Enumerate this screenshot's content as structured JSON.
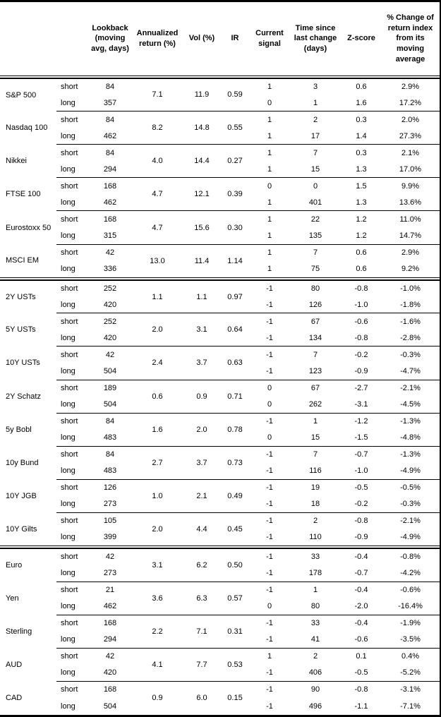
{
  "header": {
    "columns": [
      "Lookback\n(moving\navg, days)",
      "Annualized\nreturn (%)",
      "Vol (%)",
      "IR",
      "Current\nsignal",
      "Time since\nlast change\n(days)",
      "Z-score",
      "% Change of\nreturn index\nfrom its\nmoving\naverage"
    ]
  },
  "sections": [
    {
      "id": "equities",
      "groups": [
        {
          "asset": "S&P 500",
          "annualized": "7.1",
          "vol": "11.9",
          "ir": "0.59",
          "rows": [
            {
              "leg": "short",
              "lookback": "84",
              "signal": "1",
              "time_since": "3",
              "z_score": "0.6",
              "pct_change": "2.9%"
            },
            {
              "leg": "long",
              "lookback": "357",
              "signal": "0",
              "time_since": "1",
              "z_score": "1.6",
              "pct_change": "17.2%"
            }
          ]
        },
        {
          "asset": "Nasdaq 100",
          "annualized": "8.2",
          "vol": "14.8",
          "ir": "0.55",
          "rows": [
            {
              "leg": "short",
              "lookback": "84",
              "signal": "1",
              "time_since": "2",
              "z_score": "0.3",
              "pct_change": "2.0%"
            },
            {
              "leg": "long",
              "lookback": "462",
              "signal": "1",
              "time_since": "17",
              "z_score": "1.4",
              "pct_change": "27.3%"
            }
          ]
        },
        {
          "asset": "Nikkei",
          "annualized": "4.0",
          "vol": "14.4",
          "ir": "0.27",
          "rows": [
            {
              "leg": "short",
              "lookback": "84",
              "signal": "1",
              "time_since": "7",
              "z_score": "0.3",
              "pct_change": "2.1%"
            },
            {
              "leg": "long",
              "lookback": "294",
              "signal": "1",
              "time_since": "15",
              "z_score": "1.3",
              "pct_change": "17.0%"
            }
          ]
        },
        {
          "asset": "FTSE 100",
          "annualized": "4.7",
          "vol": "12.1",
          "ir": "0.39",
          "rows": [
            {
              "leg": "short",
              "lookback": "168",
              "signal": "0",
              "time_since": "0",
              "z_score": "1.5",
              "pct_change": "9.9%"
            },
            {
              "leg": "long",
              "lookback": "462",
              "signal": "1",
              "time_since": "401",
              "z_score": "1.3",
              "pct_change": "13.6%"
            }
          ]
        },
        {
          "asset": "Eurostoxx 50",
          "annualized": "4.7",
          "vol": "15.6",
          "ir": "0.30",
          "rows": [
            {
              "leg": "short",
              "lookback": "168",
              "signal": "1",
              "time_since": "22",
              "z_score": "1.2",
              "pct_change": "11.0%"
            },
            {
              "leg": "long",
              "lookback": "315",
              "signal": "1",
              "time_since": "135",
              "z_score": "1.2",
              "pct_change": "14.7%"
            }
          ]
        },
        {
          "asset": "MSCI EM",
          "annualized": "13.0",
          "vol": "11.4",
          "ir": "1.14",
          "rows": [
            {
              "leg": "short",
              "lookback": "42",
              "signal": "1",
              "time_since": "7",
              "z_score": "0.6",
              "pct_change": "2.9%"
            },
            {
              "leg": "long",
              "lookback": "336",
              "signal": "1",
              "time_since": "75",
              "z_score": "0.6",
              "pct_change": "9.2%"
            }
          ]
        }
      ]
    },
    {
      "id": "bonds",
      "groups": [
        {
          "asset": "2Y USTs",
          "annualized": "1.1",
          "vol": "1.1",
          "ir": "0.97",
          "rows": [
            {
              "leg": "short",
              "lookback": "252",
              "signal": "-1",
              "time_since": "80",
              "z_score": "-0.8",
              "pct_change": "-1.0%"
            },
            {
              "leg": "long",
              "lookback": "420",
              "signal": "-1",
              "time_since": "126",
              "z_score": "-1.0",
              "pct_change": "-1.8%"
            }
          ]
        },
        {
          "asset": "5Y USTs",
          "annualized": "2.0",
          "vol": "3.1",
          "ir": "0.64",
          "rows": [
            {
              "leg": "short",
              "lookback": "252",
              "signal": "-1",
              "time_since": "67",
              "z_score": "-0.6",
              "pct_change": "-1.6%"
            },
            {
              "leg": "long",
              "lookback": "420",
              "signal": "-1",
              "time_since": "134",
              "z_score": "-0.8",
              "pct_change": "-2.8%"
            }
          ]
        },
        {
          "asset": "10Y USTs",
          "annualized": "2.4",
          "vol": "3.7",
          "ir": "0.63",
          "rows": [
            {
              "leg": "short",
              "lookback": "42",
              "signal": "-1",
              "time_since": "7",
              "z_score": "-0.2",
              "pct_change": "-0.3%"
            },
            {
              "leg": "long",
              "lookback": "504",
              "signal": "-1",
              "time_since": "123",
              "z_score": "-0.9",
              "pct_change": "-4.7%"
            }
          ]
        },
        {
          "asset": "2Y Schatz",
          "annualized": "0.6",
          "vol": "0.9",
          "ir": "0.71",
          "rows": [
            {
              "leg": "short",
              "lookback": "189",
              "signal": "0",
              "time_since": "67",
              "z_score": "-2.7",
              "pct_change": "-2.1%"
            },
            {
              "leg": "long",
              "lookback": "504",
              "signal": "0",
              "time_since": "262",
              "z_score": "-3.1",
              "pct_change": "-4.5%"
            }
          ]
        },
        {
          "asset": "5y Bobl",
          "annualized": "1.6",
          "vol": "2.0",
          "ir": "0.78",
          "rows": [
            {
              "leg": "short",
              "lookback": "84",
              "signal": "-1",
              "time_since": "1",
              "z_score": "-1.2",
              "pct_change": "-1.3%"
            },
            {
              "leg": "long",
              "lookback": "483",
              "signal": "0",
              "time_since": "15",
              "z_score": "-1.5",
              "pct_change": "-4.8%"
            }
          ]
        },
        {
          "asset": "10y Bund",
          "annualized": "2.7",
          "vol": "3.7",
          "ir": "0.73",
          "rows": [
            {
              "leg": "short",
              "lookback": "84",
              "signal": "-1",
              "time_since": "7",
              "z_score": "-0.7",
              "pct_change": "-1.3%"
            },
            {
              "leg": "long",
              "lookback": "483",
              "signal": "-1",
              "time_since": "116",
              "z_score": "-1.0",
              "pct_change": "-4.9%"
            }
          ]
        },
        {
          "asset": "10Y JGB",
          "annualized": "1.0",
          "vol": "2.1",
          "ir": "0.49",
          "rows": [
            {
              "leg": "short",
              "lookback": "126",
              "signal": "-1",
              "time_since": "19",
              "z_score": "-0.5",
              "pct_change": "-0.5%"
            },
            {
              "leg": "long",
              "lookback": "273",
              "signal": "-1",
              "time_since": "18",
              "z_score": "-0.2",
              "pct_change": "-0.3%"
            }
          ]
        },
        {
          "asset": "10Y Gilts",
          "annualized": "2.0",
          "vol": "4.4",
          "ir": "0.45",
          "rows": [
            {
              "leg": "short",
              "lookback": "105",
              "signal": "-1",
              "time_since": "2",
              "z_score": "-0.8",
              "pct_change": "-2.1%"
            },
            {
              "leg": "long",
              "lookback": "399",
              "signal": "-1",
              "time_since": "110",
              "z_score": "-0.9",
              "pct_change": "-4.9%"
            }
          ]
        }
      ]
    },
    {
      "id": "fx",
      "groups": [
        {
          "asset": "Euro",
          "annualized": "3.1",
          "vol": "6.2",
          "ir": "0.50",
          "rows": [
            {
              "leg": "short",
              "lookback": "42",
              "signal": "-1",
              "time_since": "33",
              "z_score": "-0.4",
              "pct_change": "-0.8%"
            },
            {
              "leg": "long",
              "lookback": "273",
              "signal": "-1",
              "time_since": "178",
              "z_score": "-0.7",
              "pct_change": "-4.2%"
            }
          ]
        },
        {
          "asset": "Yen",
          "annualized": "3.6",
          "vol": "6.3",
          "ir": "0.57",
          "rows": [
            {
              "leg": "short",
              "lookback": "21",
              "signal": "-1",
              "time_since": "1",
              "z_score": "-0.4",
              "pct_change": "-0.6%"
            },
            {
              "leg": "long",
              "lookback": "462",
              "signal": "0",
              "time_since": "80",
              "z_score": "-2.0",
              "pct_change": "-16.4%"
            }
          ]
        },
        {
          "asset": "Sterling",
          "annualized": "2.2",
          "vol": "7.1",
          "ir": "0.31",
          "rows": [
            {
              "leg": "short",
              "lookback": "168",
              "signal": "-1",
              "time_since": "33",
              "z_score": "-0.4",
              "pct_change": "-1.9%"
            },
            {
              "leg": "long",
              "lookback": "294",
              "signal": "-1",
              "time_since": "41",
              "z_score": "-0.6",
              "pct_change": "-3.5%"
            }
          ]
        },
        {
          "asset": "AUD",
          "annualized": "4.1",
          "vol": "7.7",
          "ir": "0.53",
          "rows": [
            {
              "leg": "short",
              "lookback": "42",
              "signal": "1",
              "time_since": "2",
              "z_score": "0.1",
              "pct_change": "0.4%"
            },
            {
              "leg": "long",
              "lookback": "420",
              "signal": "-1",
              "time_since": "406",
              "z_score": "-0.5",
              "pct_change": "-5.2%"
            }
          ]
        },
        {
          "asset": "CAD",
          "annualized": "0.9",
          "vol": "6.0",
          "ir": "0.15",
          "rows": [
            {
              "leg": "short",
              "lookback": "168",
              "signal": "-1",
              "time_since": "90",
              "z_score": "-0.8",
              "pct_change": "-3.1%"
            },
            {
              "leg": "long",
              "lookback": "504",
              "signal": "-1",
              "time_since": "496",
              "z_score": "-1.1",
              "pct_change": "-7.1%"
            }
          ]
        }
      ]
    }
  ]
}
